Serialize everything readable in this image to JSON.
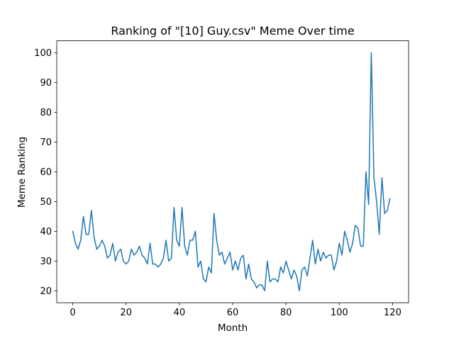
{
  "chart_data": {
    "type": "line",
    "title": "Ranking of \"[10] Guy.csv\" Meme Over time",
    "xlabel": "Month",
    "ylabel": "Meme Ranking",
    "xlim": [
      -6,
      126
    ],
    "ylim": [
      16,
      104
    ],
    "xticks": [
      0,
      20,
      40,
      60,
      80,
      100,
      120
    ],
    "yticks": [
      20,
      30,
      40,
      50,
      60,
      70,
      80,
      90,
      100
    ],
    "grid": false,
    "legend": "none",
    "line_color": "#1f77b4",
    "series": [
      {
        "x": [
          0,
          1,
          2,
          3,
          4,
          5,
          6,
          7,
          8,
          9,
          10,
          11,
          12,
          13,
          14,
          15,
          16,
          17,
          18,
          19,
          20,
          21,
          22,
          23,
          24,
          25,
          26,
          27,
          28,
          29,
          30,
          31,
          32,
          33,
          34,
          35,
          36,
          37,
          38,
          39,
          40,
          41,
          42,
          43,
          44,
          45,
          46,
          47,
          48,
          49,
          50,
          51,
          52,
          53,
          54,
          55,
          56,
          57,
          58,
          59,
          60,
          61,
          62,
          63,
          64,
          65,
          66,
          67,
          68,
          69,
          70,
          71,
          72,
          73,
          74,
          75,
          76,
          77,
          78,
          79,
          80,
          81,
          82,
          83,
          84,
          85,
          86,
          87,
          88,
          89,
          90,
          91,
          92,
          93,
          94,
          95,
          96,
          97,
          98,
          99,
          100,
          101,
          102,
          103,
          104,
          105,
          106,
          107,
          108,
          109,
          110,
          111,
          112,
          113,
          114,
          115,
          116,
          117,
          118,
          119
        ],
        "values": [
          40,
          36,
          34,
          37,
          45,
          39,
          39,
          47,
          38,
          34,
          35,
          37,
          35,
          31,
          32,
          36,
          30,
          33,
          34,
          30,
          29,
          30,
          34,
          32,
          33,
          35,
          32,
          31,
          29,
          36,
          29,
          29,
          28,
          29,
          31,
          37,
          30,
          31,
          48,
          37,
          35,
          48,
          35,
          32,
          37,
          37,
          40,
          28,
          30,
          24,
          23,
          28,
          26,
          46,
          37,
          32,
          33,
          29,
          31,
          33,
          27,
          30,
          27,
          31,
          32,
          24,
          29,
          24,
          23,
          21,
          22,
          22,
          20,
          30,
          23,
          24,
          24,
          23,
          28,
          26,
          30,
          27,
          24,
          27,
          25,
          20,
          27,
          28,
          25,
          31,
          37,
          29,
          34,
          30,
          33,
          31,
          32,
          32,
          27,
          30,
          36,
          32,
          40,
          37,
          33,
          36,
          42,
          41,
          35,
          35,
          60,
          49,
          100,
          58,
          50,
          39,
          58,
          46,
          47,
          51
        ]
      }
    ]
  }
}
